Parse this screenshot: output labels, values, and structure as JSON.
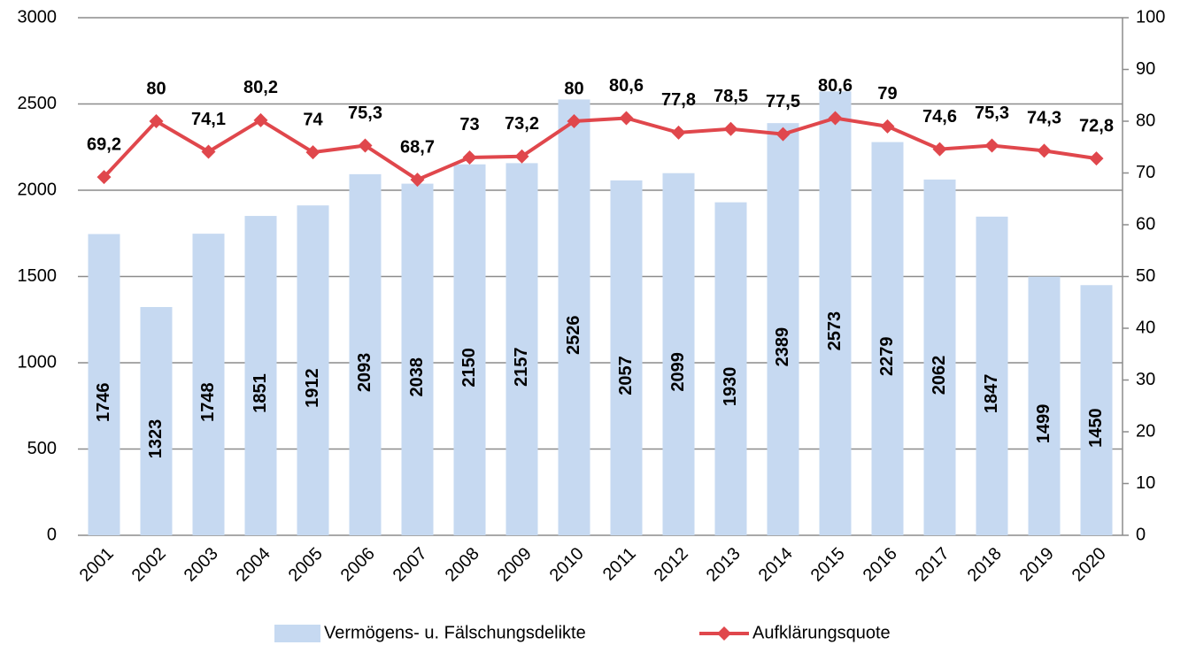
{
  "chart_data": {
    "type": "bar_line",
    "categories": [
      "2001",
      "2002",
      "2003",
      "2004",
      "2005",
      "2006",
      "2007",
      "2008",
      "2009",
      "2010",
      "2011",
      "2012",
      "2013",
      "2014",
      "2015",
      "2016",
      "2017",
      "2018",
      "2019",
      "2020"
    ],
    "series": [
      {
        "name": "Vermögens- u. Fälschungsdelikte",
        "color": "#c6d9f1",
        "type": "bar",
        "values": [
          1746,
          1323,
          1748,
          1851,
          1912,
          2093,
          2038,
          2150,
          2157,
          2526,
          2057,
          2099,
          1930,
          2389,
          2573,
          2279,
          2062,
          1847,
          1499,
          1450
        ]
      },
      {
        "name": "Aufklärungsquote",
        "color": "#e0474c",
        "type": "line",
        "axis": "y2",
        "values": [
          69.2,
          80,
          74.1,
          80.2,
          74,
          75.3,
          68.7,
          73,
          73.2,
          80,
          80.6,
          77.8,
          78.5,
          77.5,
          80.6,
          79,
          74.6,
          75.3,
          74.3,
          72.8
        ],
        "value_labels": [
          "69,2",
          "80",
          "74,1",
          "80,2",
          "74",
          "75,3",
          "68,7",
          "73",
          "73,2",
          "80",
          "80,6",
          "77,8",
          "78,5",
          "77,5",
          "80,6",
          "79",
          "74,6",
          "75,3",
          "74,3",
          "72,8"
        ]
      }
    ],
    "ylim": [
      0,
      3000
    ],
    "yticks": [
      0,
      500,
      1000,
      1500,
      2000,
      2500,
      3000
    ],
    "y2lim": [
      0,
      100
    ],
    "y2ticks": [
      0,
      10,
      20,
      30,
      40,
      50,
      60,
      70,
      80,
      90,
      100
    ],
    "grid": true,
    "legend": "bottom"
  }
}
